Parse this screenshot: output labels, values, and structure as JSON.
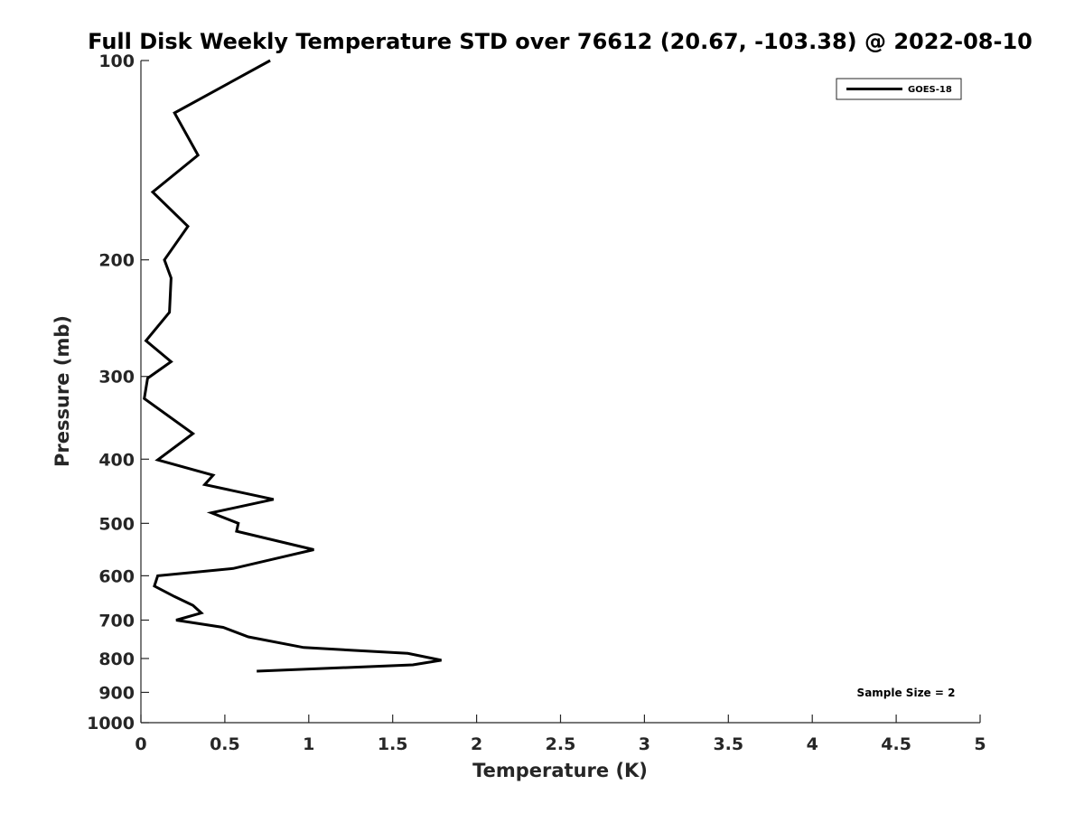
{
  "chart_data": {
    "type": "line",
    "title": "Full Disk Weekly Temperature STD over 76612 (20.67, -103.38) @ 2022-08-10",
    "xlabel": "Temperature (K)",
    "ylabel": "Pressure (mb)",
    "xlim": [
      0,
      5
    ],
    "ylim": [
      100,
      1000
    ],
    "y_scale": "log",
    "y_reversed": true,
    "grid": false,
    "legend_position": "top-right",
    "x_ticks": [
      "0",
      "0.5",
      "1",
      "1.5",
      "2",
      "2.5",
      "3",
      "3.5",
      "4",
      "4.5",
      "5"
    ],
    "y_ticks": [
      "100",
      "200",
      "300",
      "400",
      "500",
      "600",
      "700",
      "800",
      "900",
      "1000"
    ],
    "series": [
      {
        "name": "GOES-18",
        "color": "#000000",
        "points": [
          {
            "x": 0.77,
            "p": 100
          },
          {
            "x": 0.2,
            "p": 120
          },
          {
            "x": 0.34,
            "p": 139
          },
          {
            "x": 0.07,
            "p": 158
          },
          {
            "x": 0.28,
            "p": 178
          },
          {
            "x": 0.14,
            "p": 200
          },
          {
            "x": 0.18,
            "p": 213
          },
          {
            "x": 0.17,
            "p": 240
          },
          {
            "x": 0.03,
            "p": 265
          },
          {
            "x": 0.18,
            "p": 285
          },
          {
            "x": 0.04,
            "p": 302
          },
          {
            "x": 0.02,
            "p": 324
          },
          {
            "x": 0.31,
            "p": 366
          },
          {
            "x": 0.1,
            "p": 401
          },
          {
            "x": 0.43,
            "p": 423
          },
          {
            "x": 0.38,
            "p": 437
          },
          {
            "x": 0.79,
            "p": 460
          },
          {
            "x": 0.42,
            "p": 482
          },
          {
            "x": 0.58,
            "p": 500
          },
          {
            "x": 0.57,
            "p": 514
          },
          {
            "x": 1.03,
            "p": 548
          },
          {
            "x": 0.87,
            "p": 560
          },
          {
            "x": 0.55,
            "p": 585
          },
          {
            "x": 0.1,
            "p": 600
          },
          {
            "x": 0.08,
            "p": 622
          },
          {
            "x": 0.2,
            "p": 645
          },
          {
            "x": 0.31,
            "p": 665
          },
          {
            "x": 0.36,
            "p": 683
          },
          {
            "x": 0.21,
            "p": 700
          },
          {
            "x": 0.49,
            "p": 718
          },
          {
            "x": 0.64,
            "p": 742
          },
          {
            "x": 0.97,
            "p": 770
          },
          {
            "x": 1.59,
            "p": 786
          },
          {
            "x": 1.79,
            "p": 805
          },
          {
            "x": 1.62,
            "p": 818
          },
          {
            "x": 0.69,
            "p": 836
          }
        ]
      }
    ],
    "annotation": "Sample Size = 2"
  }
}
